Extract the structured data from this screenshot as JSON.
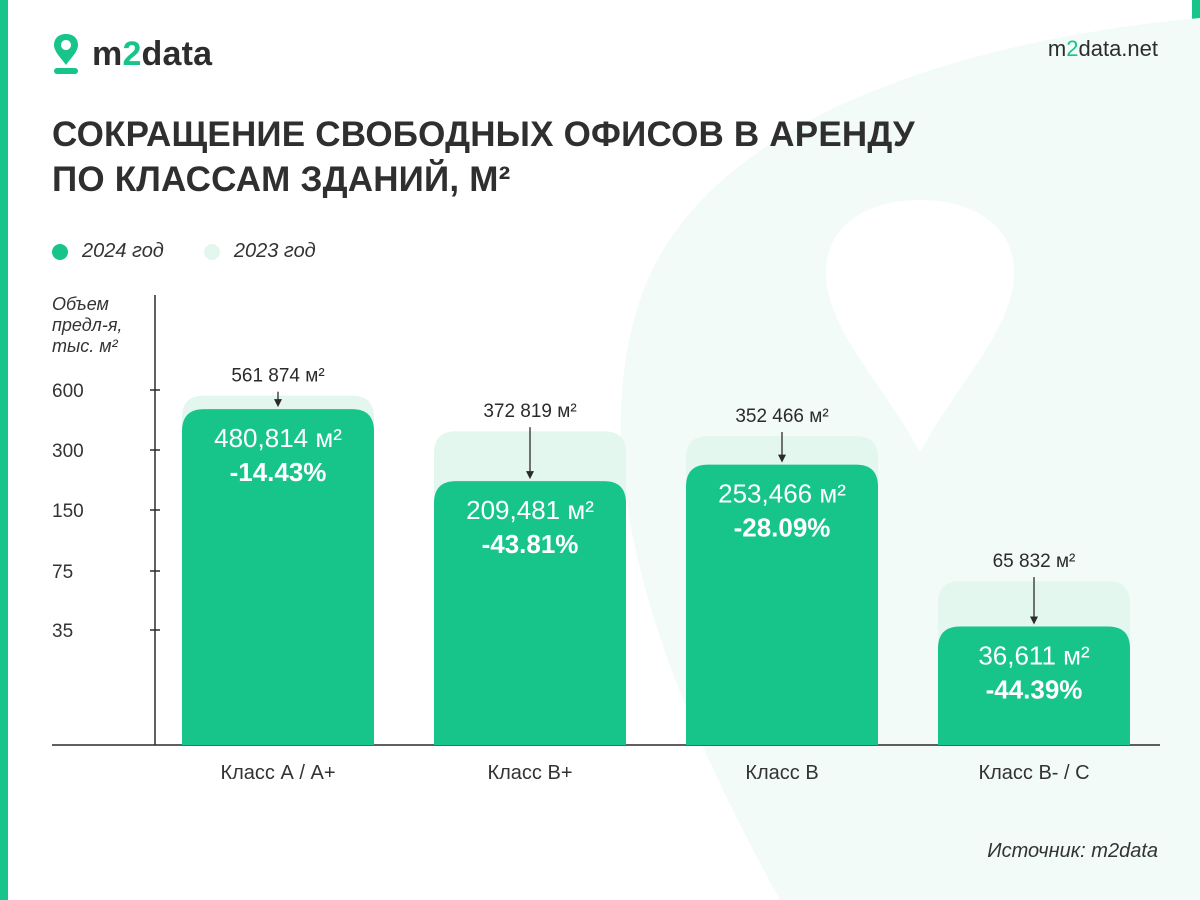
{
  "brand": {
    "name_part1": "m",
    "name_accent": "2",
    "name_part2": "data",
    "site_part1": "m",
    "site_accent": "2",
    "site_part2": "data.net",
    "accent_color": "#17c58a",
    "light_color": "#e3f7ef"
  },
  "title_line1": "Сокращение свободных офисов в аренду",
  "title_line2": "по классам зданий, м²",
  "legend": [
    {
      "label": "2024 год",
      "color": "#17c58a"
    },
    {
      "label": "2023 год",
      "color": "#e3f7ef"
    }
  ],
  "ylabel_lines": [
    "Объем",
    "предл-я,",
    "тыс. м²"
  ],
  "source": "Источник: m2data",
  "chart_data": {
    "type": "bar",
    "title": "Сокращение свободных офисов в аренду по классам зданий, м²",
    "ylabel": "Объем предл-я, тыс. м²",
    "y_scale": "nonlinear",
    "y_ticks": [
      35,
      75,
      150,
      300,
      600
    ],
    "grid": false,
    "legend_position": "top-left",
    "categories": [
      "Класс А / А+",
      "Класс В+",
      "Класс В",
      "Класс В- / С"
    ],
    "series": [
      {
        "name": "2024 год",
        "color": "#17c58a",
        "values": [
          480814,
          209481,
          253466,
          36611
        ],
        "value_labels": [
          "480,814 м²",
          "209,481 м²",
          "253,466 м²",
          "36,611 м²"
        ],
        "change_labels": [
          "-14.43%",
          "-43.81%",
          "-28.09%",
          "-44.39%"
        ]
      },
      {
        "name": "2023 год",
        "color": "#e3f7ef",
        "values": [
          561874,
          372819,
          352466,
          65832
        ],
        "value_labels": [
          "561 874 м²",
          "372 819 м²",
          "352 466 м²",
          "65 832 м²"
        ]
      }
    ]
  }
}
